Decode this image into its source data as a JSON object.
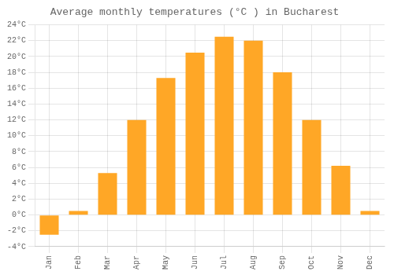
{
  "chart_data": {
    "type": "bar",
    "title": "Average monthly temperatures (°C ) in Bucharest",
    "categories": [
      "Jan",
      "Feb",
      "Mar",
      "Apr",
      "May",
      "Jun",
      "Jul",
      "Aug",
      "Sep",
      "Oct",
      "Nov",
      "Dec"
    ],
    "values": [
      -2.5,
      0.5,
      5.3,
      12.0,
      17.3,
      20.5,
      22.5,
      22.0,
      18.0,
      12.0,
      6.2,
      0.5
    ],
    "color": "#FFA726",
    "ylim": [
      -4,
      24
    ],
    "yticks": [
      {
        "value": -4,
        "label": "-4°C"
      },
      {
        "value": -2,
        "label": "-2°C"
      },
      {
        "value": 0,
        "label": "0°C"
      },
      {
        "value": 2,
        "label": "2°C"
      },
      {
        "value": 4,
        "label": "4°C"
      },
      {
        "value": 6,
        "label": "6°C"
      },
      {
        "value": 8,
        "label": "8°C"
      },
      {
        "value": 10,
        "label": "10°C"
      },
      {
        "value": 12,
        "label": "12°C"
      },
      {
        "value": 14,
        "label": "14°C"
      },
      {
        "value": 16,
        "label": "16°C"
      },
      {
        "value": 18,
        "label": "18°C"
      },
      {
        "value": 20,
        "label": "20°C"
      },
      {
        "value": 22,
        "label": "22°C"
      },
      {
        "value": 24,
        "label": "24°C"
      }
    ],
    "grid": true
  }
}
